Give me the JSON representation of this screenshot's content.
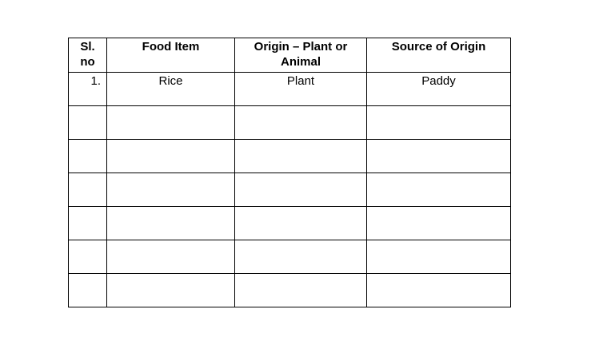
{
  "page": {
    "background_color": "#ffffff",
    "text_color": "#000000",
    "border_color": "#000000"
  },
  "table": {
    "headers": [
      "Sl. no",
      "Food Item",
      "Origin – Plant or Animal",
      "Source of Origin"
    ],
    "rows": [
      [
        "1.",
        "Rice",
        "Plant",
        "Paddy"
      ],
      [
        "",
        "",
        "",
        ""
      ],
      [
        "",
        "",
        "",
        ""
      ],
      [
        "",
        "",
        "",
        ""
      ],
      [
        "",
        "",
        "",
        ""
      ],
      [
        "",
        "",
        "",
        ""
      ],
      [
        "",
        "",
        "",
        ""
      ]
    ]
  }
}
